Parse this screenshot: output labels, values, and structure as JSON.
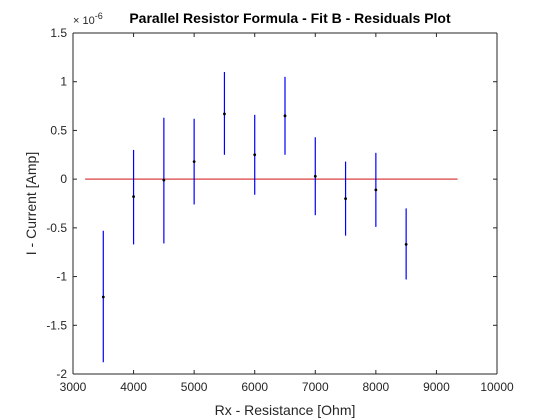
{
  "chart_data": {
    "type": "scatter",
    "title": "Parallel Resistor Formula - Fit B - Residuals Plot",
    "xlabel": "Rx - Resistance [Ohm]",
    "ylabel": "I - Current [Amp]",
    "xlim": [
      3000,
      10000
    ],
    "ylim": [
      -2,
      1.5
    ],
    "y_exponent_label": "x 10^-6",
    "x_ticks": [
      3000,
      4000,
      5000,
      6000,
      7000,
      8000,
      9000,
      10000
    ],
    "x_tick_labels": [
      "3000",
      "4000",
      "5000",
      "6000",
      "7000",
      "8000",
      "9000",
      "10000"
    ],
    "y_ticks": [
      -2,
      -1.5,
      -1,
      -0.5,
      0,
      0.5,
      1,
      1.5
    ],
    "y_tick_labels": [
      "-2",
      "-1.5",
      "-1",
      "-0.5",
      "0",
      "0.5",
      "1",
      "1.5"
    ],
    "grid": false,
    "series": [
      {
        "marker": "point",
        "color": "#0000ff",
        "points": [
          {
            "x": 3500,
            "y": -1.21,
            "ylow": -1.88,
            "yhigh": -0.53
          },
          {
            "x": 4000,
            "y": -0.18,
            "ylow": -0.67,
            "yhigh": 0.3
          },
          {
            "x": 4500,
            "y": -0.01,
            "ylow": -0.66,
            "yhigh": 0.63
          },
          {
            "x": 5000,
            "y": 0.18,
            "ylow": -0.26,
            "yhigh": 0.62
          },
          {
            "x": 5500,
            "y": 0.67,
            "ylow": 0.25,
            "yhigh": 1.1
          },
          {
            "x": 6000,
            "y": 0.25,
            "ylow": -0.16,
            "yhigh": 0.66
          },
          {
            "x": 6500,
            "y": 0.65,
            "ylow": 0.25,
            "yhigh": 1.05
          },
          {
            "x": 7000,
            "y": 0.03,
            "ylow": -0.37,
            "yhigh": 0.43
          },
          {
            "x": 7500,
            "y": -0.2,
            "ylow": -0.58,
            "yhigh": 0.18
          },
          {
            "x": 8000,
            "y": -0.11,
            "ylow": -0.49,
            "yhigh": 0.27
          },
          {
            "x": 8500,
            "y": -0.67,
            "ylow": -1.03,
            "yhigh": -0.3
          }
        ]
      }
    ],
    "reference_line": {
      "y": 0,
      "x_start": 3200,
      "x_end": 9350,
      "color": "#e06060"
    }
  }
}
